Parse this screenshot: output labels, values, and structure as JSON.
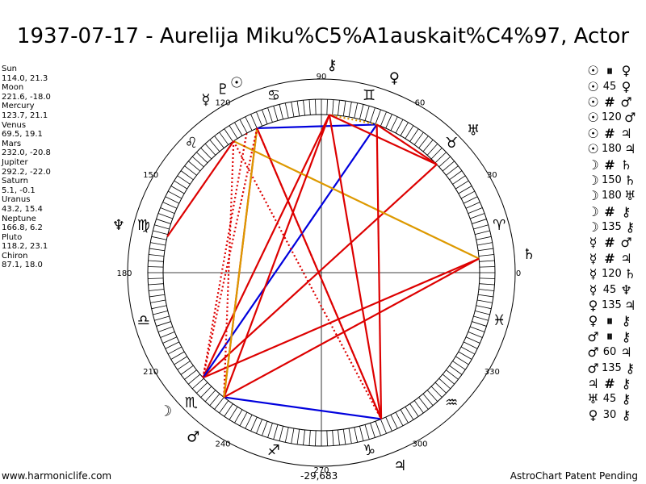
{
  "title": "1937-07-17 - Aurelija Miku%C5%A1auskait%C4%97, Actor",
  "planets": [
    {
      "name": "Sun",
      "coords": "114.0, 21.3"
    },
    {
      "name": "Moon",
      "coords": "221.6, -18.0"
    },
    {
      "name": "Mercury",
      "coords": "123.7, 21.1"
    },
    {
      "name": "Venus",
      "coords": "69.5, 19.1"
    },
    {
      "name": "Mars",
      "coords": "232.0, -20.8"
    },
    {
      "name": "Jupiter",
      "coords": "292.2, -22.0"
    },
    {
      "name": "Saturn",
      "coords": "5.1, -0.1"
    },
    {
      "name": "Uranus",
      "coords": "43.2, 15.4"
    },
    {
      "name": "Neptune",
      "coords": "166.8, 6.2"
    },
    {
      "name": "Pluto",
      "coords": "118.2, 23.1"
    },
    {
      "name": "Chiron",
      "coords": "87.1, 18.0"
    }
  ],
  "aspect_list": [
    [
      "☉",
      "⏸",
      "♀"
    ],
    [
      "☉",
      "45",
      "♀"
    ],
    [
      "☉",
      "#",
      "♂"
    ],
    [
      "☉",
      "120",
      "♂"
    ],
    [
      "☉",
      "#",
      "♃"
    ],
    [
      "☉",
      "180",
      "♃"
    ],
    [
      "☽",
      "#",
      "♄"
    ],
    [
      "☽",
      "150",
      "♄"
    ],
    [
      "☽",
      "180",
      "♅"
    ],
    [
      "☽",
      "#",
      "⚷"
    ],
    [
      "☽",
      "135",
      "⚷"
    ],
    [
      "☿",
      "#",
      "♂"
    ],
    [
      "☿",
      "#",
      "♃"
    ],
    [
      "☿",
      "120",
      "♄"
    ],
    [
      "☿",
      "45",
      "♆"
    ],
    [
      "♀",
      "135",
      "♃"
    ],
    [
      "♀",
      "⏸",
      "⚷"
    ],
    [
      "♂",
      "⏸",
      "⚷"
    ],
    [
      "♂",
      "60",
      "♃"
    ],
    [
      "♂",
      "135",
      "⚷"
    ],
    [
      "♃",
      "#",
      "⚷"
    ],
    [
      "♅",
      "45",
      "⚷"
    ],
    [
      "♀",
      "30",
      "⚷"
    ]
  ],
  "degree_labels": [
    "0",
    "30",
    "60",
    "90",
    "120",
    "150",
    "180",
    "210",
    "240",
    "270",
    "300",
    "330"
  ],
  "zodiac": [
    "♈",
    "♉",
    "♊",
    "♋",
    "♌",
    "♍",
    "♎",
    "♏",
    "♐",
    "♑",
    "♒",
    "♓"
  ],
  "planet_glyphs": {
    "Sun": "☉",
    "Moon": "☽",
    "Mercury": "☿",
    "Venus": "♀",
    "Mars": "♂",
    "Jupiter": "♃",
    "Saturn": "♄",
    "Uranus": "♅",
    "Neptune": "♆",
    "Pluto": "♇",
    "Chiron": "⚷"
  },
  "aspect_lines": [
    {
      "from": "Sun",
      "to": "Venus",
      "color": "#0000dd",
      "style": "solid"
    },
    {
      "from": "Sun",
      "to": "Mars",
      "color": "#dd0000",
      "style": "solid"
    },
    {
      "from": "Sun",
      "to": "Jupiter",
      "color": "#dd0000",
      "style": "solid"
    },
    {
      "from": "Moon",
      "to": "Saturn",
      "color": "#dd0000",
      "style": "solid"
    },
    {
      "from": "Moon",
      "to": "Uranus",
      "color": "#dd0000",
      "style": "solid"
    },
    {
      "from": "Moon",
      "to": "Chiron",
      "color": "#dd0000",
      "style": "solid"
    },
    {
      "from": "Moon",
      "to": "Venus",
      "color": "#0000dd",
      "style": "solid"
    },
    {
      "from": "Mercury",
      "to": "Saturn",
      "color": "#dd9900",
      "style": "solid"
    },
    {
      "from": "Mercury",
      "to": "Neptune",
      "color": "#dd0000",
      "style": "solid"
    },
    {
      "from": "Mercury",
      "to": "Mars",
      "color": "#dd0000",
      "style": "dotted"
    },
    {
      "from": "Mercury",
      "to": "Jupiter",
      "color": "#dd0000",
      "style": "dotted"
    },
    {
      "from": "Venus",
      "to": "Chiron",
      "color": "#dd9900",
      "style": "dotted"
    },
    {
      "from": "Venus",
      "to": "Jupiter",
      "color": "#dd0000",
      "style": "solid"
    },
    {
      "from": "Venus",
      "to": "Uranus",
      "color": "#dd0000",
      "style": "solid"
    },
    {
      "from": "Mars",
      "to": "Chiron",
      "color": "#dd0000",
      "style": "solid"
    },
    {
      "from": "Mars",
      "to": "Jupiter",
      "color": "#0000dd",
      "style": "solid"
    },
    {
      "from": "Mars",
      "to": "Saturn",
      "color": "#dd0000",
      "style": "solid"
    },
    {
      "from": "Mars",
      "to": "Sun",
      "color": "#dd9900",
      "style": "solid"
    },
    {
      "from": "Jupiter",
      "to": "Chiron",
      "color": "#dd0000",
      "style": "solid"
    },
    {
      "from": "Uranus",
      "to": "Chiron",
      "color": "#dd0000",
      "style": "solid"
    },
    {
      "from": "Sun",
      "to": "Moon",
      "color": "#dd0000",
      "style": "dotted"
    },
    {
      "from": "Pluto",
      "to": "Moon",
      "color": "#dd0000",
      "style": "dotted"
    },
    {
      "from": "Sun",
      "to": "Jupiter",
      "color": "#dd0000",
      "style": "dotted"
    }
  ],
  "footer": {
    "left": "www.harmoniclife.com",
    "middle": "-29,683",
    "right": "AstroChart Patent Pending"
  }
}
